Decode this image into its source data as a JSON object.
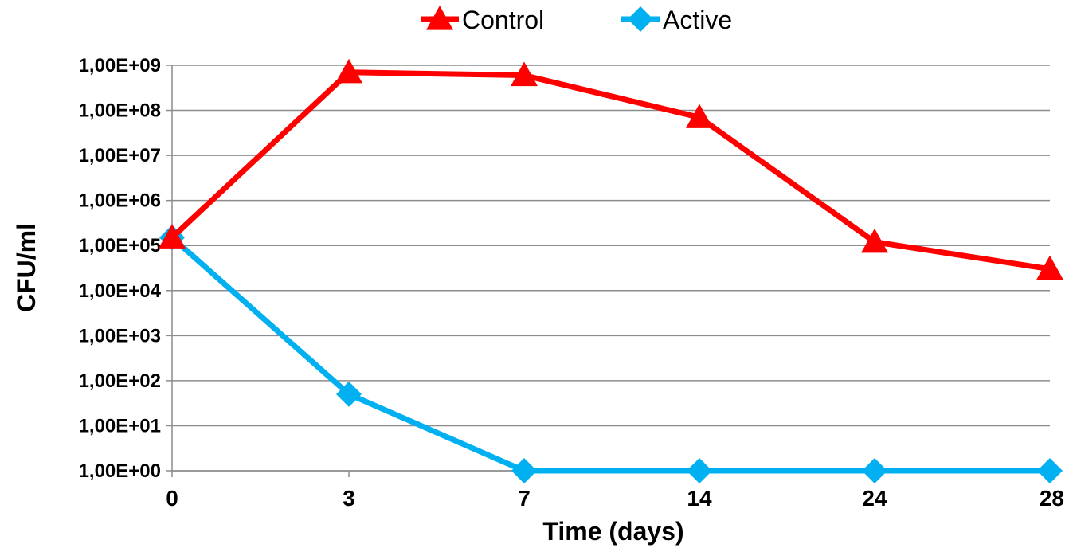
{
  "chart_data": {
    "type": "line",
    "categories": [
      "0",
      "3",
      "7",
      "14",
      "24",
      "28"
    ],
    "xlabel": "Time (days)",
    "ylabel": "CFU/ml",
    "yscale": "log",
    "ylim": [
      1,
      1000000000
    ],
    "ytick_values": [
      1,
      10,
      100,
      1000,
      10000,
      100000,
      1000000,
      10000000,
      100000000,
      1000000000
    ],
    "ytick_labels": [
      "1,00E+00",
      "1,00E+01",
      "1,00E+02",
      "1,00E+03",
      "1,00E+04",
      "1,00E+05",
      "1,00E+06",
      "1,00E+07",
      "1,00E+08",
      "1,00E+09"
    ],
    "grid": "horizontal",
    "legend": "top-center",
    "series": [
      {
        "name": "Control",
        "color": "#ff0000",
        "marker": "triangle",
        "values": [
          150000,
          700000000,
          600000000,
          70000000,
          120000,
          30000
        ]
      },
      {
        "name": "Active",
        "color": "#00b0f0",
        "marker": "diamond",
        "values": [
          150000,
          50,
          1,
          1,
          1,
          1
        ]
      }
    ]
  }
}
